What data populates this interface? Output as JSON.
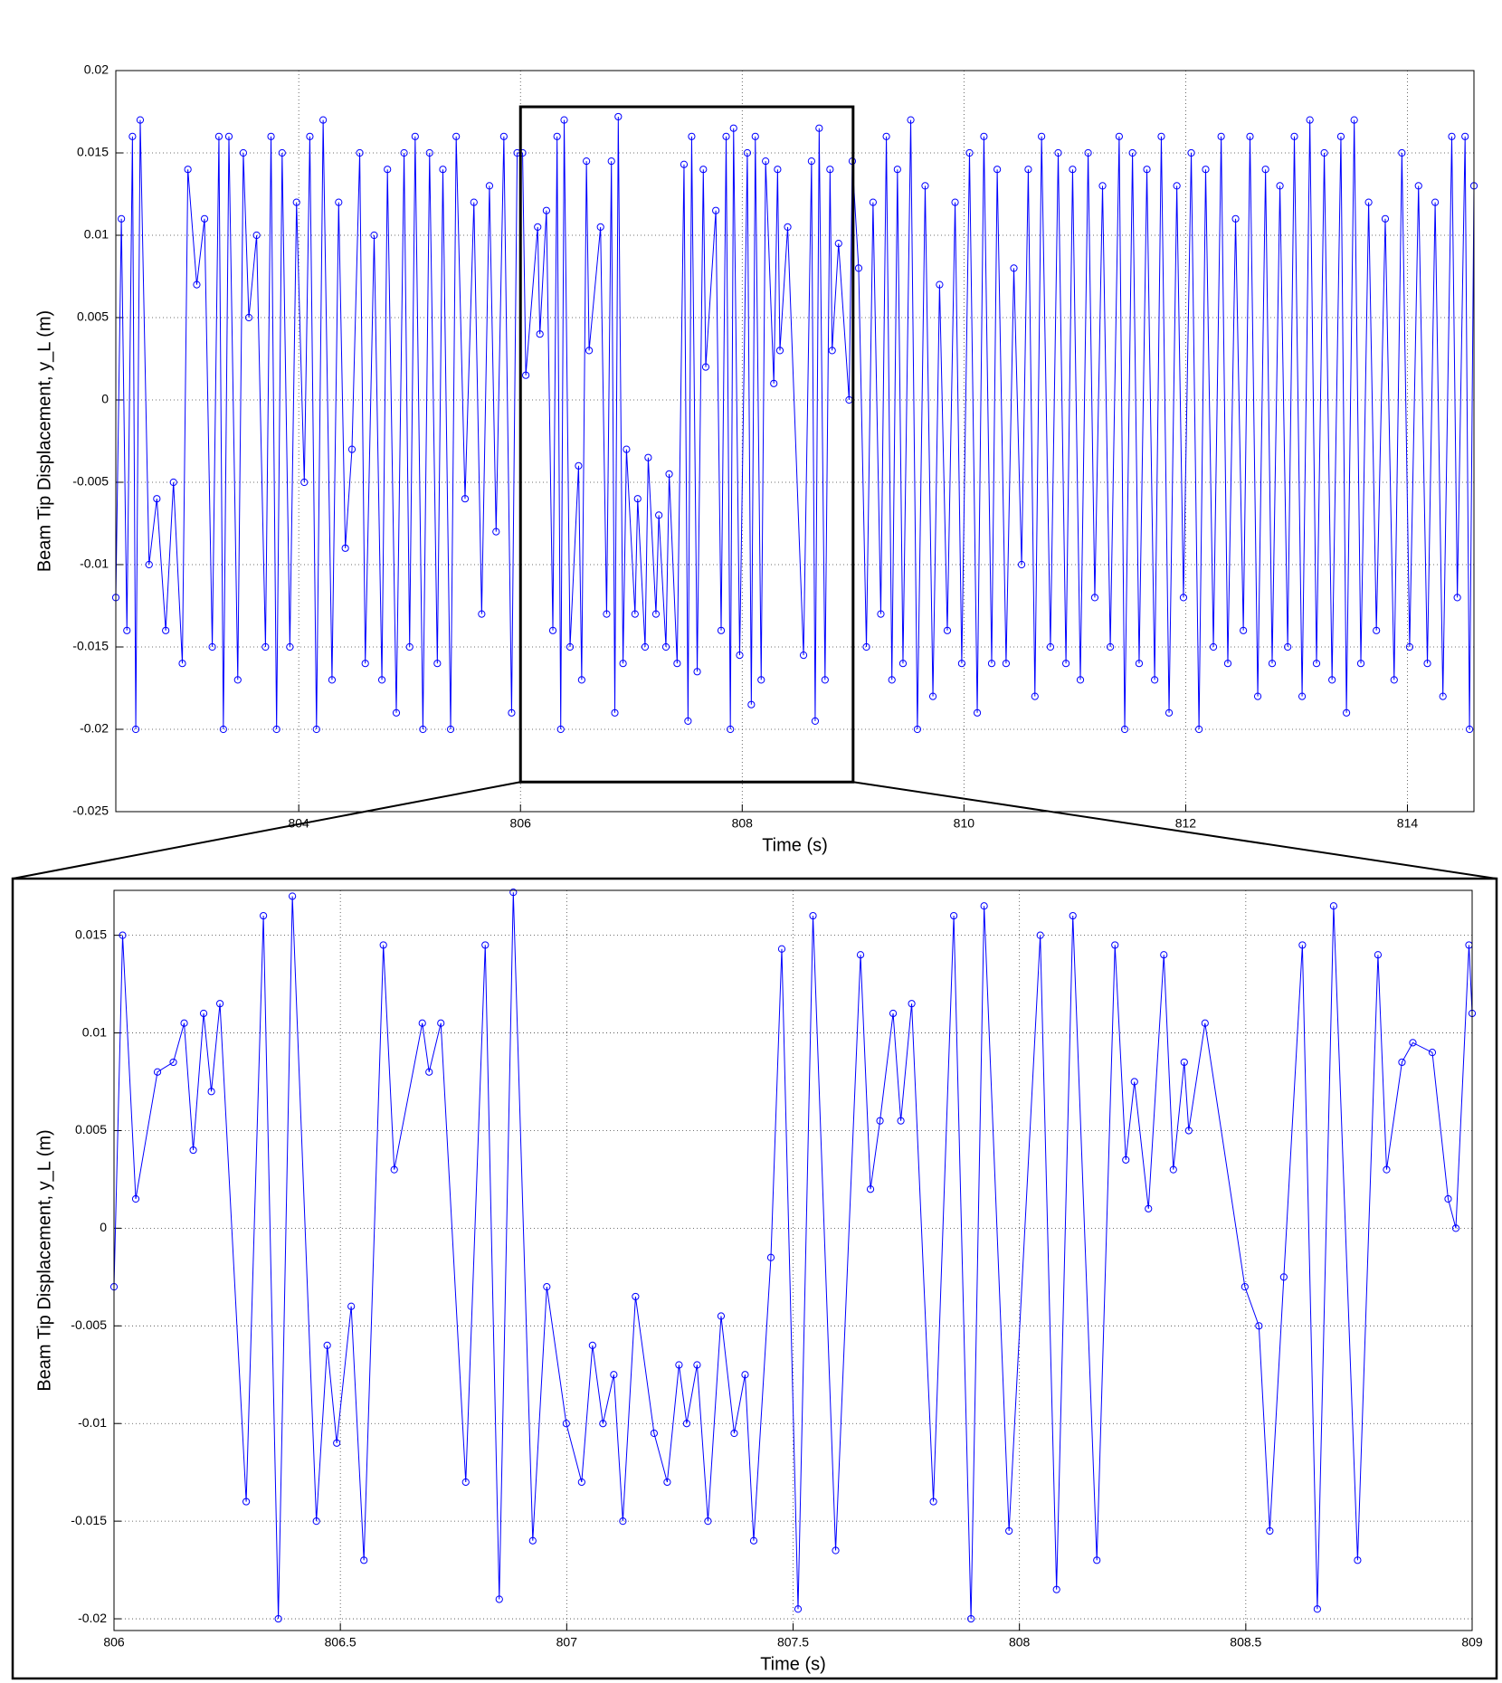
{
  "chart_data": [
    {
      "type": "line",
      "x_label": "Time (s)",
      "y_label": "Beam Tip Displacement, y_L (m)",
      "color": "#0000ff",
      "marker": "circle",
      "grid": true,
      "xlim": [
        802.35,
        814.6
      ],
      "ylim": [
        -0.025,
        0.02
      ],
      "xticks": [
        804,
        806,
        808,
        810,
        812,
        814
      ],
      "yticks": [
        -0.025,
        -0.02,
        -0.015,
        -0.01,
        -0.005,
        0,
        0.005,
        0.01,
        0.015,
        0.02
      ],
      "zoom_box": {
        "xlim": [
          806,
          809
        ],
        "ylim": [
          -0.0232,
          0.0178
        ]
      },
      "x": [
        802.35,
        802.4,
        802.45,
        802.5,
        802.53,
        802.57,
        802.65,
        802.72,
        802.8,
        802.87,
        802.95,
        803.0,
        803.08,
        803.15,
        803.22,
        803.28,
        803.32,
        803.37,
        803.45,
        803.5,
        803.55,
        803.62,
        803.7,
        803.75,
        803.8,
        803.85,
        803.92,
        803.98,
        804.05,
        804.1,
        804.16,
        804.22,
        804.3,
        804.36,
        804.42,
        804.48,
        804.55,
        804.6,
        804.68,
        804.75,
        804.8,
        804.88,
        804.95,
        805.0,
        805.05,
        805.12,
        805.18,
        805.25,
        805.3,
        805.37,
        805.42,
        805.5,
        805.58,
        805.65,
        805.72,
        805.78,
        805.85,
        805.92,
        805.97,
        806.019,
        806.048,
        806.155,
        806.175,
        806.234,
        806.292,
        806.33,
        806.363,
        806.394,
        806.447,
        806.524,
        806.552,
        806.595,
        806.619,
        806.722,
        806.777,
        806.82,
        806.851,
        806.882,
        806.925,
        806.956,
        807.033,
        807.057,
        807.124,
        807.152,
        807.222,
        807.248,
        807.312,
        807.341,
        807.413,
        807.475,
        807.511,
        807.544,
        807.594,
        807.649,
        807.671,
        807.762,
        807.81,
        807.855,
        807.893,
        807.922,
        807.977,
        808.046,
        808.082,
        808.118,
        808.171,
        808.211,
        808.285,
        808.319,
        808.34,
        808.41,
        808.553,
        808.625,
        808.658,
        808.694,
        808.747,
        808.792,
        808.811,
        808.869,
        808.964,
        808.993,
        809.05,
        809.12,
        809.18,
        809.25,
        809.3,
        809.35,
        809.4,
        809.45,
        809.52,
        809.58,
        809.65,
        809.72,
        809.78,
        809.85,
        809.92,
        809.98,
        810.05,
        810.12,
        810.18,
        810.25,
        810.3,
        810.38,
        810.45,
        810.52,
        810.58,
        810.64,
        810.7,
        810.78,
        810.85,
        810.92,
        810.98,
        811.05,
        811.12,
        811.18,
        811.25,
        811.32,
        811.4,
        811.45,
        811.52,
        811.58,
        811.65,
        811.72,
        811.78,
        811.85,
        811.92,
        811.98,
        812.05,
        812.12,
        812.18,
        812.25,
        812.32,
        812.38,
        812.45,
        812.52,
        812.58,
        812.65,
        812.72,
        812.78,
        812.85,
        812.92,
        812.98,
        813.05,
        813.12,
        813.18,
        813.25,
        813.32,
        813.4,
        813.45,
        813.52,
        813.58,
        813.65,
        813.72,
        813.8,
        813.88,
        813.95,
        814.02,
        814.1,
        814.18,
        814.25,
        814.32,
        814.4,
        814.45,
        814.52,
        814.56,
        814.6
      ],
      "values": [
        -0.012,
        0.011,
        -0.014,
        0.016,
        -0.02,
        0.017,
        -0.01,
        -0.006,
        -0.014,
        -0.005,
        -0.016,
        0.014,
        0.007,
        0.011,
        -0.015,
        0.016,
        -0.02,
        0.016,
        -0.017,
        0.015,
        0.005,
        0.01,
        -0.015,
        0.016,
        -0.02,
        0.015,
        -0.015,
        0.012,
        -0.005,
        0.016,
        -0.02,
        0.017,
        -0.017,
        0.012,
        -0.009,
        -0.003,
        0.015,
        -0.016,
        0.01,
        -0.017,
        0.014,
        -0.019,
        0.015,
        -0.015,
        0.016,
        -0.02,
        0.015,
        -0.016,
        0.014,
        -0.02,
        0.016,
        -0.006,
        0.012,
        -0.013,
        0.013,
        -0.008,
        0.016,
        -0.019,
        0.015,
        0.015,
        0.0015,
        0.0105,
        0.004,
        0.0115,
        -0.014,
        0.016,
        -0.02,
        0.017,
        -0.015,
        -0.004,
        -0.017,
        0.0145,
        0.003,
        0.0105,
        -0.013,
        0.0145,
        -0.019,
        0.0172,
        -0.016,
        -0.003,
        -0.013,
        -0.006,
        -0.015,
        -0.0035,
        -0.013,
        -0.007,
        -0.015,
        -0.0045,
        -0.016,
        0.0143,
        -0.0195,
        0.016,
        -0.0165,
        0.014,
        0.002,
        0.0115,
        -0.014,
        0.016,
        -0.02,
        0.0165,
        -0.0155,
        0.015,
        -0.0185,
        0.016,
        -0.017,
        0.0145,
        0.001,
        0.014,
        0.003,
        0.0105,
        -0.0155,
        0.0145,
        -0.0195,
        0.0165,
        -0.017,
        0.014,
        0.003,
        0.0095,
        0,
        0.0145,
        0.008,
        -0.015,
        0.012,
        -0.013,
        0.016,
        -0.017,
        0.014,
        -0.016,
        0.017,
        -0.02,
        0.013,
        -0.018,
        0.007,
        -0.014,
        0.012,
        -0.016,
        0.015,
        -0.019,
        0.016,
        -0.016,
        0.014,
        -0.016,
        0.008,
        -0.01,
        0.014,
        -0.018,
        0.016,
        -0.015,
        0.015,
        -0.016,
        0.014,
        -0.017,
        0.015,
        -0.012,
        0.013,
        -0.015,
        0.016,
        -0.02,
        0.015,
        -0.016,
        0.014,
        -0.017,
        0.016,
        -0.019,
        0.013,
        -0.012,
        0.015,
        -0.02,
        0.014,
        -0.015,
        0.016,
        -0.016,
        0.011,
        -0.014,
        0.016,
        -0.018,
        0.014,
        -0.016,
        0.013,
        -0.015,
        0.016,
        -0.018,
        0.017,
        -0.016,
        0.015,
        -0.017,
        0.016,
        -0.019,
        0.017,
        -0.016,
        0.012,
        -0.014,
        0.011,
        -0.017,
        0.015,
        -0.015,
        0.013,
        -0.016,
        0.012,
        -0.018,
        0.016,
        -0.012,
        0.016,
        -0.02,
        0.013
      ]
    },
    {
      "type": "line",
      "x_label": "Time (s)",
      "y_label": "Beam Tip Displacement, y_L (m)",
      "color": "#0000ff",
      "marker": "circle",
      "grid": true,
      "xlim": [
        806,
        809
      ],
      "ylim": [
        -0.0206,
        0.0173
      ],
      "xticks": [
        806,
        806.5,
        807,
        807.5,
        808,
        808.5,
        809
      ],
      "yticks": [
        -0.02,
        -0.015,
        -0.01,
        -0.005,
        0,
        0.005,
        0.01,
        0.015
      ],
      "x": [
        806.0,
        806.019,
        806.048,
        806.096,
        806.131,
        806.155,
        806.175,
        806.198,
        806.215,
        806.234,
        806.292,
        806.33,
        806.363,
        806.394,
        806.447,
        806.471,
        806.492,
        806.524,
        806.552,
        806.595,
        806.619,
        806.681,
        806.696,
        806.722,
        806.777,
        806.82,
        806.851,
        806.882,
        806.925,
        806.956,
        806.999,
        807.033,
        807.057,
        807.08,
        807.104,
        807.124,
        807.152,
        807.193,
        807.222,
        807.248,
        807.265,
        807.288,
        807.312,
        807.341,
        807.37,
        807.394,
        807.413,
        807.451,
        807.475,
        807.511,
        807.544,
        807.594,
        807.649,
        807.671,
        807.692,
        807.721,
        807.738,
        807.762,
        807.81,
        807.855,
        807.893,
        807.922,
        807.977,
        808.046,
        808.082,
        808.118,
        808.171,
        808.211,
        808.235,
        808.254,
        808.285,
        808.319,
        808.34,
        808.364,
        808.374,
        808.41,
        808.498,
        808.529,
        808.553,
        808.584,
        808.625,
        808.658,
        808.694,
        808.747,
        808.792,
        808.811,
        808.845,
        808.869,
        808.912,
        808.947,
        808.964,
        808.993,
        809.0
      ],
      "values": [
        -0.003,
        0.015,
        0.0015,
        0.008,
        0.0085,
        0.0105,
        0.004,
        0.011,
        0.007,
        0.0115,
        -0.014,
        0.016,
        -0.02,
        0.017,
        -0.015,
        -0.006,
        -0.011,
        -0.004,
        -0.017,
        0.0145,
        0.003,
        0.0105,
        0.008,
        0.0105,
        -0.013,
        0.0145,
        -0.019,
        0.0172,
        -0.016,
        -0.003,
        -0.01,
        -0.013,
        -0.006,
        -0.01,
        -0.0075,
        -0.015,
        -0.0035,
        -0.0105,
        -0.013,
        -0.007,
        -0.01,
        -0.007,
        -0.015,
        -0.0045,
        -0.0105,
        -0.0075,
        -0.016,
        -0.0015,
        0.0143,
        -0.0195,
        0.016,
        -0.0165,
        0.014,
        0.002,
        0.0055,
        0.011,
        0.0055,
        0.0115,
        -0.014,
        0.016,
        -0.02,
        0.0165,
        -0.0155,
        0.015,
        -0.0185,
        0.016,
        -0.017,
        0.0145,
        0.0035,
        0.0075,
        0.001,
        0.014,
        0.003,
        0.0085,
        0.005,
        0.0105,
        -0.003,
        -0.005,
        -0.0155,
        -0.0025,
        0.0145,
        -0.0195,
        0.0165,
        -0.017,
        0.014,
        0.003,
        0.0085,
        0.0095,
        0.009,
        0.0015,
        0,
        0.0145,
        0.011
      ]
    }
  ]
}
